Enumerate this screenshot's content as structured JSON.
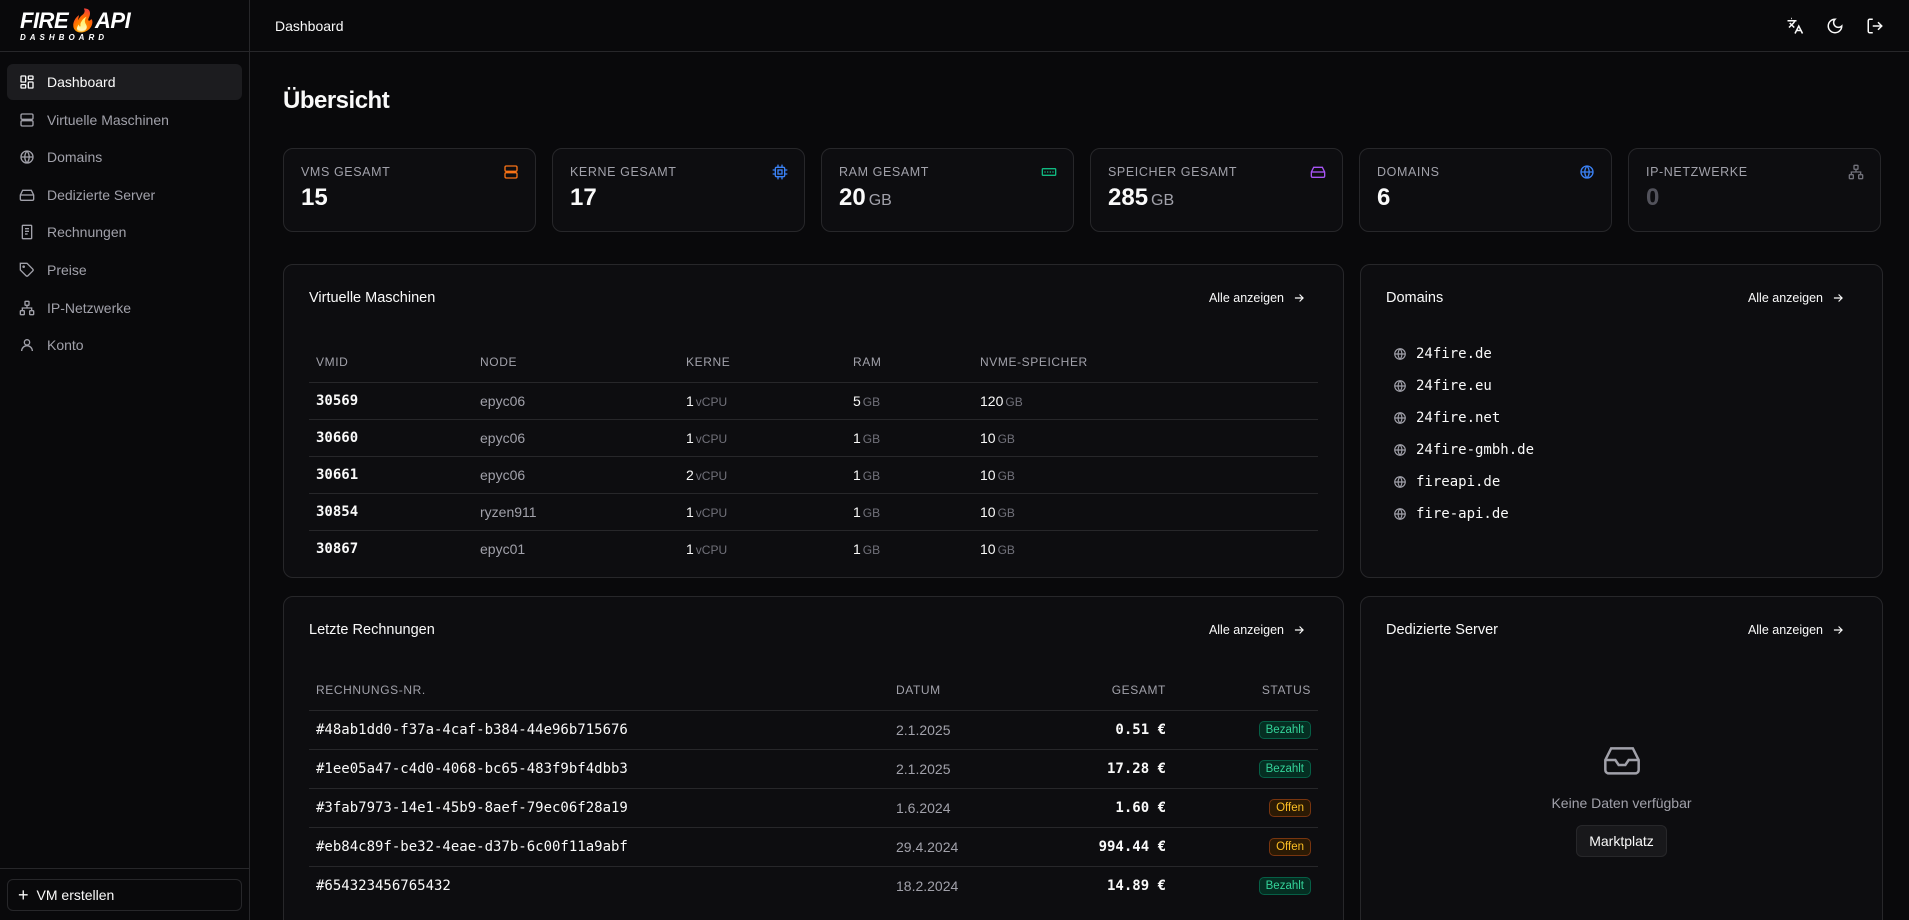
{
  "brand": {
    "name_a": "FIRE",
    "name_b": "API",
    "sub": "DASHBOARD"
  },
  "header": {
    "title": "Dashboard"
  },
  "sidebar": {
    "items": [
      {
        "label": "Dashboard",
        "icon": "layout-dashboard-icon"
      },
      {
        "label": "Virtuelle Maschinen",
        "icon": "server-icon"
      },
      {
        "label": "Domains",
        "icon": "globe-icon"
      },
      {
        "label": "Dedizierte Server",
        "icon": "hard-drive-icon"
      },
      {
        "label": "Rechnungen",
        "icon": "receipt-icon"
      },
      {
        "label": "Preise",
        "icon": "tag-icon"
      },
      {
        "label": "IP-Netzwerke",
        "icon": "network-icon"
      },
      {
        "label": "Konto",
        "icon": "user-icon"
      }
    ],
    "create_vm": "VM erstellen"
  },
  "page_title": "Übersicht",
  "stats": [
    {
      "label": "VMs gesamt",
      "value": "15",
      "unit": "",
      "icon": "server-icon",
      "color": "#f97316"
    },
    {
      "label": "Kerne gesamt",
      "value": "17",
      "unit": "",
      "icon": "cpu-icon",
      "color": "#3b82f6"
    },
    {
      "label": "RAM gesamt",
      "value": "20",
      "unit": "GB",
      "icon": "memory-icon",
      "color": "#10b981"
    },
    {
      "label": "Speicher gesamt",
      "value": "285",
      "unit": "GB",
      "icon": "hard-drive-icon",
      "color": "#a855f7"
    },
    {
      "label": "Domains",
      "value": "6",
      "unit": "",
      "icon": "globe-icon",
      "color": "#3b82f6"
    },
    {
      "label": "IP-Netzwerke",
      "value": "0",
      "unit": "",
      "icon": "network-icon",
      "color": "#71717a"
    }
  ],
  "vms": {
    "title": "Virtuelle Maschinen",
    "see_all": "Alle anzeigen",
    "columns": [
      "VMID",
      "NODE",
      "KERNE",
      "RAM",
      "NVME-SPEICHER"
    ],
    "cores_unit": "vCPU",
    "gb_unit": "GB",
    "rows": [
      {
        "id": "30569",
        "node": "epyc06",
        "cores": "1",
        "ram": "5",
        "disk": "120"
      },
      {
        "id": "30660",
        "node": "epyc06",
        "cores": "1",
        "ram": "1",
        "disk": "10"
      },
      {
        "id": "30661",
        "node": "epyc06",
        "cores": "2",
        "ram": "1",
        "disk": "10"
      },
      {
        "id": "30854",
        "node": "ryzen911",
        "cores": "1",
        "ram": "1",
        "disk": "10"
      },
      {
        "id": "30867",
        "node": "epyc01",
        "cores": "1",
        "ram": "1",
        "disk": "10"
      }
    ]
  },
  "domains": {
    "title": "Domains",
    "see_all": "Alle anzeigen",
    "items": [
      "24fire.de",
      "24fire.eu",
      "24fire.net",
      "24fire-gmbh.de",
      "fireapi.de",
      "fire-api.de"
    ]
  },
  "invoices": {
    "title": "Letzte Rechnungen",
    "see_all": "Alle anzeigen",
    "columns": [
      "RECHNUNGS-NR.",
      "DATUM",
      "GESAMT",
      "STATUS"
    ],
    "rows": [
      {
        "nr": "#48ab1dd0-f37a-4caf-b384-44e96b715676",
        "date": "2.1.2025",
        "total": "0.51 €",
        "status": "Bezahlt",
        "kind": "paid"
      },
      {
        "nr": "#1ee05a47-c4d0-4068-bc65-483f9bf4dbb3",
        "date": "2.1.2025",
        "total": "17.28 €",
        "status": "Bezahlt",
        "kind": "paid"
      },
      {
        "nr": "#3fab7973-14e1-45b9-8aef-79ec06f28a19",
        "date": "1.6.2024",
        "total": "1.60 €",
        "status": "Offen",
        "kind": "open"
      },
      {
        "nr": "#eb84c89f-be32-4eae-d37b-6c00f11a9abf",
        "date": "29.4.2024",
        "total": "994.44 €",
        "status": "Offen",
        "kind": "open"
      },
      {
        "nr": "#654323456765432",
        "date": "18.2.2024",
        "total": "14.89 €",
        "status": "Bezahlt",
        "kind": "paid"
      }
    ]
  },
  "dedicated": {
    "title": "Dedizierte Server",
    "see_all": "Alle anzeigen",
    "empty_text": "Keine Daten verfügbar",
    "market_button": "Marktplatz"
  }
}
